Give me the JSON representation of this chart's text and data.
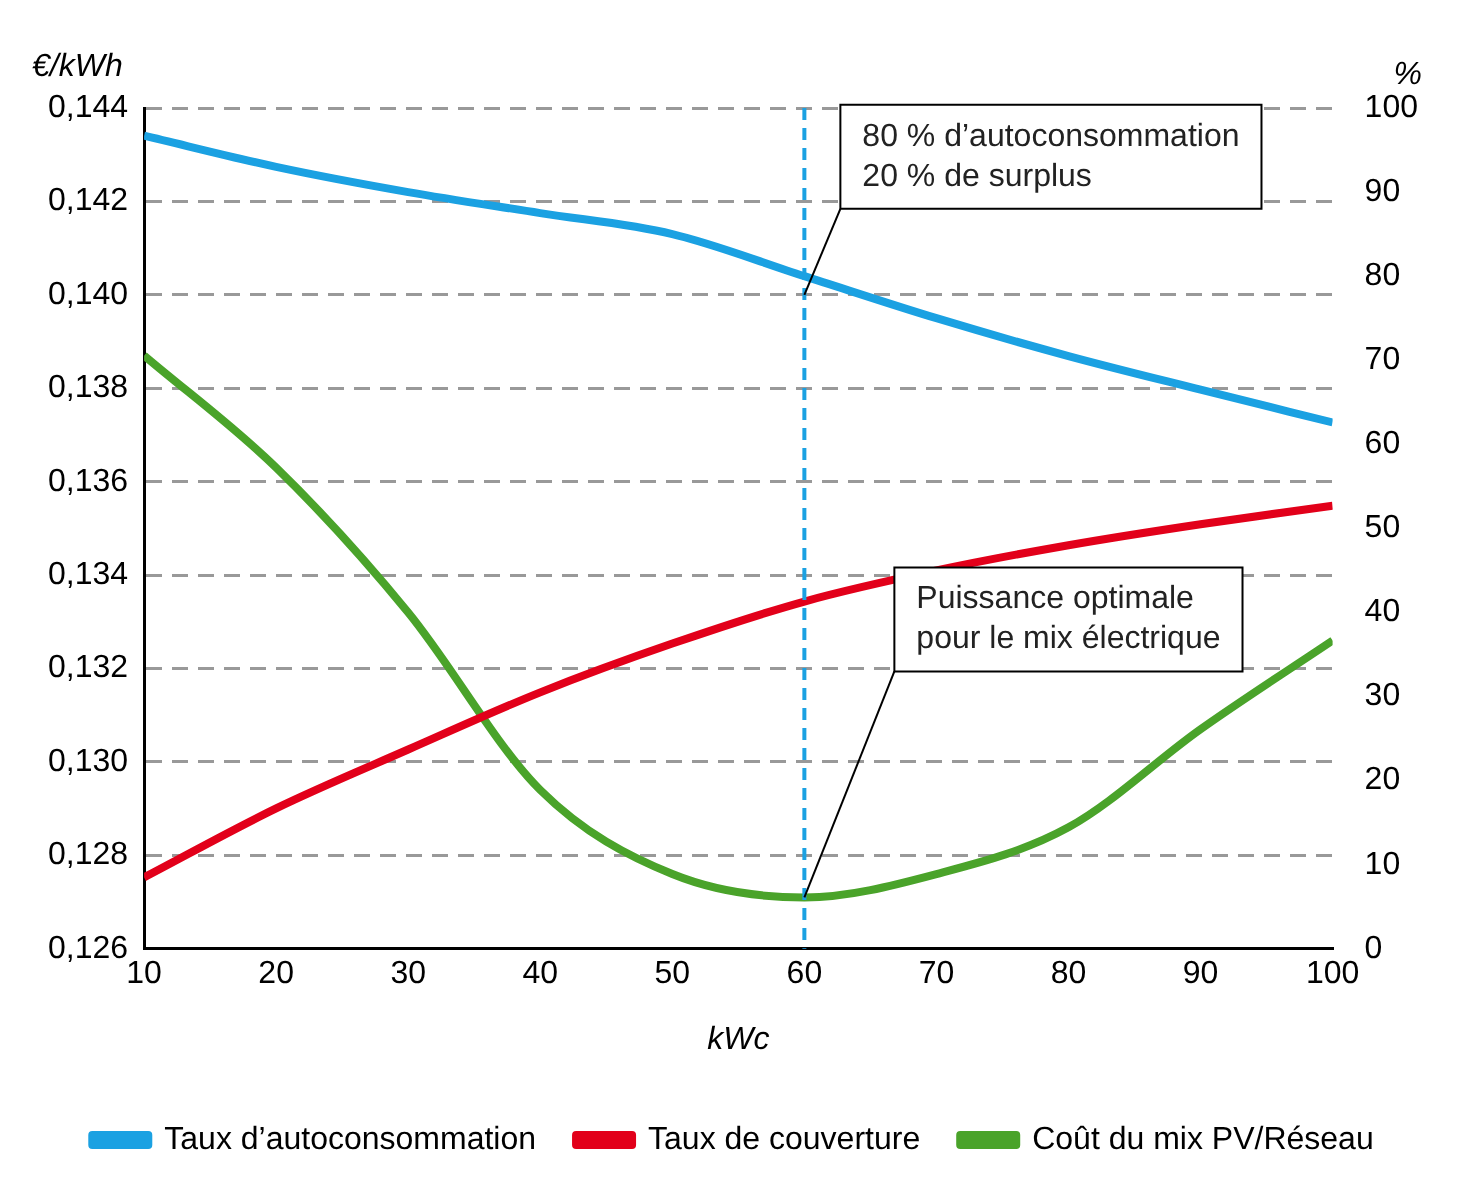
{
  "chart_data": {
    "type": "line",
    "xlabel": "kWc",
    "ylabel": "€/kWh",
    "y2label": "%",
    "x": [
      10,
      20,
      30,
      40,
      50,
      60,
      70,
      80,
      90,
      100
    ],
    "series": [
      {
        "name": "Taux d’autoconsommation",
        "color": "#1ba1e2",
        "axis": "y2",
        "values": [
          96.7,
          93,
          90,
          87.5,
          85,
          80,
          75,
          70.5,
          66.5,
          62.6
        ]
      },
      {
        "name": "Taux de couverture",
        "color": "#e2001a",
        "axis": "y2",
        "values": [
          8.5,
          16.7,
          23.7,
          30.5,
          36.3,
          41.3,
          45,
          48,
          50.5,
          52.7
        ]
      },
      {
        "name": "Coût du mix PV/Réseau",
        "color": "#4aa32a",
        "values": [
          0.1387,
          0.1363,
          0.1332,
          0.1294,
          0.1276,
          0.1271,
          0.1276,
          0.1286,
          0.1307,
          0.1326
        ]
      }
    ],
    "xlim": [
      10,
      100
    ],
    "xticks": [
      10,
      20,
      30,
      40,
      50,
      60,
      70,
      80,
      90,
      100
    ],
    "ylim": [
      0.126,
      0.144
    ],
    "yticks": [
      {
        "value": 0.126,
        "label": "0,126"
      },
      {
        "value": 0.128,
        "label": "0,128"
      },
      {
        "value": 0.13,
        "label": "0,130"
      },
      {
        "value": 0.132,
        "label": "0,132"
      },
      {
        "value": 0.134,
        "label": "0,134"
      },
      {
        "value": 0.136,
        "label": "0,136"
      },
      {
        "value": 0.138,
        "label": "0,138"
      },
      {
        "value": 0.14,
        "label": "0,140"
      },
      {
        "value": 0.142,
        "label": "0,142"
      },
      {
        "value": 0.144,
        "label": "0,144"
      }
    ],
    "y2lim": [
      0,
      100
    ],
    "y2ticks": [
      0,
      10,
      20,
      30,
      40,
      50,
      60,
      70,
      80,
      90,
      100
    ],
    "ref_lines": [
      {
        "axis": "x",
        "value": 60,
        "color": "#1ba1e2",
        "line_style": "dashed"
      }
    ],
    "annotations": [
      {
        "text": "80 % d’autoconsommation\n20 % de surplus",
        "x": 60,
        "y": 0.14
      },
      {
        "text": "Puissance optimale\npour le mix électrique",
        "x": 60,
        "y": 0.1271
      }
    ],
    "grid": "y",
    "legend": "bottom",
    "line_style": "solid",
    "marker": "none"
  }
}
